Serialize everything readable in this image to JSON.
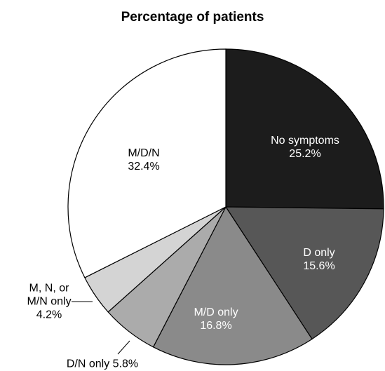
{
  "chart_data": {
    "type": "pie",
    "title": "Percentage of patients",
    "categories": [
      "No symptoms",
      "D only",
      "M/D only",
      "D/N only",
      "M, N, or M/N only",
      "M/D/N"
    ],
    "values": [
      25.2,
      15.6,
      16.8,
      5.8,
      4.2,
      32.4
    ],
    "value_labels": [
      "25.2%",
      "15.6%",
      "16.8%",
      "5.8%",
      "4.2%",
      "32.4%"
    ],
    "colors": [
      "#1c1c1c",
      "#575757",
      "#8a8a8a",
      "#ababab",
      "#d4d4d4",
      "#ffffff"
    ]
  }
}
